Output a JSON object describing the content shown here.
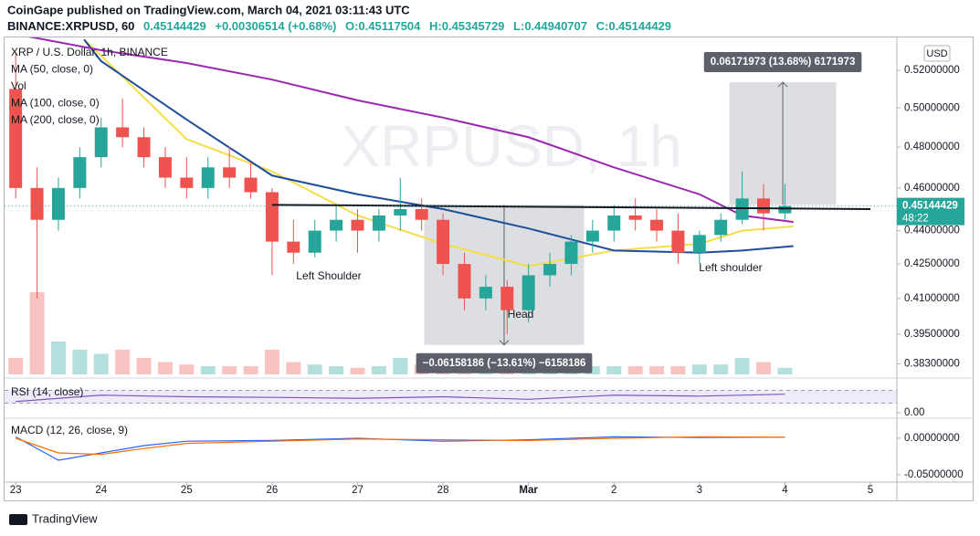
{
  "chart_data": {
    "type": "candlestick",
    "header": {
      "published": "CoinGape published on TradingView.com, March 04, 2021 03:11:43 UTC",
      "symbol": "BINANCE:XRPUSD, 60",
      "price": "0.45144429",
      "change": "+0.00306514 (+0.68%)",
      "ohlc": [
        "O:0.45117504",
        "H:0.45345729",
        "L:0.44940707",
        "C:0.45144429"
      ]
    },
    "title": "XRP / U.S. Dollar, 1h, BINANCE",
    "volume_label": "Vol",
    "watermark": "XRPUSD, 1h",
    "currency": "USD",
    "footer": "TradingView",
    "up_color": "#26a69a",
    "down_color": "#ef5350",
    "log_scale": true,
    "grid": false,
    "x": [
      0,
      0.25,
      0.5,
      0.75,
      1,
      1.25,
      1.5,
      1.75,
      2,
      2.25,
      2.5,
      2.75,
      3,
      3.25,
      3.5,
      3.75,
      4,
      4.25,
      4.5,
      4.75,
      5,
      5.25,
      5.5,
      5.75,
      6,
      6.25,
      6.5,
      6.75,
      7,
      7.25,
      7.5,
      7.75,
      8,
      8.25,
      8.5,
      8.75,
      9
    ],
    "open": [
      0.51,
      0.46,
      0.445,
      0.46,
      0.475,
      0.49,
      0.485,
      0.475,
      0.465,
      0.46,
      0.47,
      0.465,
      0.458,
      0.435,
      0.43,
      0.44,
      0.445,
      0.44,
      0.447,
      0.45,
      0.445,
      0.425,
      0.41,
      0.415,
      0.405,
      0.42,
      0.425,
      0.435,
      0.44,
      0.447,
      0.445,
      0.44,
      0.43,
      0.438,
      0.445,
      0.455,
      0.448
    ],
    "high": [
      0.53,
      0.47,
      0.465,
      0.48,
      0.495,
      0.505,
      0.49,
      0.48,
      0.475,
      0.475,
      0.48,
      0.472,
      0.46,
      0.445,
      0.445,
      0.452,
      0.45,
      0.45,
      0.465,
      0.455,
      0.448,
      0.43,
      0.42,
      0.418,
      0.425,
      0.43,
      0.438,
      0.445,
      0.452,
      0.455,
      0.45,
      0.448,
      0.44,
      0.448,
      0.468,
      0.462,
      0.462
    ],
    "low": [
      0.455,
      0.41,
      0.44,
      0.455,
      0.47,
      0.48,
      0.47,
      0.46,
      0.455,
      0.455,
      0.46,
      0.455,
      0.42,
      0.425,
      0.428,
      0.435,
      0.43,
      0.435,
      0.44,
      0.44,
      0.42,
      0.405,
      0.405,
      0.395,
      0.4,
      0.415,
      0.42,
      0.43,
      0.435,
      0.44,
      0.435,
      0.425,
      0.425,
      0.435,
      0.443,
      0.44,
      0.445
    ],
    "close": [
      0.46,
      0.445,
      0.46,
      0.475,
      0.49,
      0.485,
      0.475,
      0.465,
      0.46,
      0.47,
      0.465,
      0.458,
      0.435,
      0.43,
      0.44,
      0.445,
      0.44,
      0.447,
      0.45,
      0.445,
      0.425,
      0.41,
      0.415,
      0.405,
      0.42,
      0.425,
      0.435,
      0.44,
      0.447,
      0.445,
      0.44,
      0.43,
      0.438,
      0.445,
      0.455,
      0.448,
      0.45144429
    ],
    "volume": [
      20,
      100,
      40,
      30,
      25,
      30,
      20,
      15,
      12,
      10,
      10,
      10,
      30,
      15,
      12,
      10,
      8,
      10,
      20,
      12,
      15,
      20,
      12,
      25,
      18,
      12,
      10,
      10,
      10,
      10,
      10,
      10,
      12,
      12,
      20,
      15,
      8
    ],
    "last_price": 0.45144429,
    "countdown": "48:22",
    "xlim": [
      -0.13,
      10.31
    ],
    "xticks": [
      {
        "value": 0,
        "label": "23"
      },
      {
        "value": 1,
        "label": "24"
      },
      {
        "value": 2,
        "label": "25"
      },
      {
        "value": 3,
        "label": "26"
      },
      {
        "value": 4,
        "label": "27"
      },
      {
        "value": 5,
        "label": "28"
      },
      {
        "value": 6,
        "label": "Mar"
      },
      {
        "value": 7,
        "label": "2"
      },
      {
        "value": 8,
        "label": "3"
      },
      {
        "value": 9,
        "label": "4"
      },
      {
        "value": 10,
        "label": "5"
      }
    ],
    "ylim": [
      0.3788,
      0.5366
    ],
    "yticks": [
      {
        "value": 0.52,
        "label": "0.52000000"
      },
      {
        "value": 0.5,
        "label": "0.50000000"
      },
      {
        "value": 0.48,
        "label": "0.48000000"
      },
      {
        "value": 0.46,
        "label": "0.46000000"
      },
      {
        "value": 0.44,
        "label": "0.44000000"
      },
      {
        "value": 0.425,
        "label": "0.42500000"
      },
      {
        "value": 0.41,
        "label": "0.41000000"
      },
      {
        "value": 0.395,
        "label": "0.39500000"
      },
      {
        "value": 0.383,
        "label": "0.38300000"
      }
    ],
    "series": [
      {
        "name": "MA (50, close, 0)",
        "color": "#f5dd45",
        "x": [
          0.8,
          1,
          2,
          3,
          4,
          5,
          6,
          7,
          8,
          8.5,
          9.1
        ],
        "values": [
          0.537,
          0.528,
          0.484,
          0.468,
          0.447,
          0.434,
          0.424,
          0.431,
          0.434,
          0.44,
          0.442
        ]
      },
      {
        "name": "MA (100, close, 0)",
        "color": "#1f4e9c",
        "x": [
          0.8,
          1,
          2,
          3,
          4,
          5,
          6,
          7,
          8,
          8.5,
          9.1
        ],
        "values": [
          0.537,
          0.525,
          0.494,
          0.466,
          0.457,
          0.45,
          0.441,
          0.431,
          0.43,
          0.431,
          0.433
        ]
      },
      {
        "name": "MA (200, close, 0)",
        "color": "#9c27b0",
        "x": [
          0,
          1,
          2,
          3,
          4,
          5,
          6,
          7,
          8,
          8.5,
          9.1
        ],
        "values": [
          0.54,
          0.531,
          0.524,
          0.515,
          0.504,
          0.495,
          0.485,
          0.47,
          0.457,
          0.447,
          0.444
        ]
      }
    ],
    "neckline": {
      "color": "#131722",
      "x": [
        3,
        10
      ],
      "values": [
        0.452,
        0.45
      ]
    },
    "measures": [
      {
        "x": [
          4.78,
          6.65
        ],
        "values": [
          0.452,
          0.3906
        ],
        "label": "−0.06158186 (−13.61%) −6158186"
      },
      {
        "x": [
          8.35,
          9.6
        ],
        "values": [
          0.452,
          0.5136
        ],
        "label": "0.06171973 (13.68%) 6171973"
      }
    ],
    "annotations": [
      "Left Shoulder",
      "Head",
      "Left shoulder"
    ],
    "rsi": {
      "label": "RSI (14, close)",
      "color": "#7e57c2",
      "x": [
        0,
        1,
        2,
        3,
        4,
        5,
        6,
        7,
        8,
        9
      ],
      "values": [
        35,
        55,
        50,
        48,
        45,
        50,
        42,
        55,
        52,
        58
      ],
      "band": [
        30,
        70
      ],
      "ylim": [
        0,
        100
      ],
      "yticks": [
        {
          "value": 0,
          "label": "0.00"
        }
      ]
    },
    "macd": {
      "label": "MACD (12, 26, close, 9)",
      "x": [
        0,
        0.5,
        1,
        1.5,
        2,
        3,
        4,
        5,
        6,
        7,
        8,
        9
      ],
      "macd": [
        0.002,
        -0.03,
        -0.02,
        -0.01,
        -0.004,
        -0.003,
        0.0,
        -0.004,
        -0.002,
        0.002,
        0.001,
        0.0015
      ],
      "macd_color": "#2962ff",
      "signal": [
        0.0,
        -0.02,
        -0.022,
        -0.014,
        -0.007,
        -0.004,
        -0.001,
        -0.002,
        -0.003,
        0.0,
        0.002,
        0.0015
      ],
      "signal_color": "#ff6d00",
      "ylim": [
        -0.0625,
        0.0225
      ],
      "yticks": [
        {
          "value": 0,
          "label": "0.00000000"
        },
        {
          "value": -0.05,
          "label": "-0.05000000"
        }
      ]
    }
  }
}
